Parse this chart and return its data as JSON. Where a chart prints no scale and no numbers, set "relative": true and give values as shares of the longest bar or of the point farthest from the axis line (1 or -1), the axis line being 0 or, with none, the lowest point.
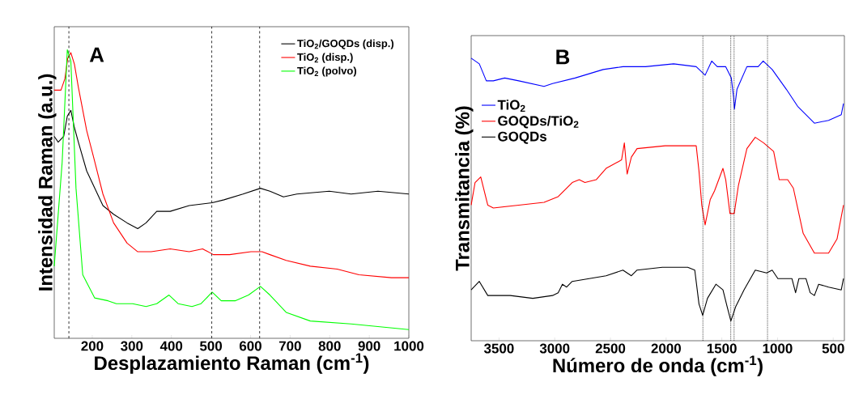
{
  "chart_data": [
    {
      "type": "line",
      "xlabel": "Desplazamiento Raman (cm$^{-1}$)",
      "ylabel": "Intensidad Raman (a.u.)",
      "relative": true,
      "xlim": [
        104,
        1000
      ],
      "xticks": [
        200,
        300,
        400,
        500,
        600,
        700,
        800,
        900,
        1000
      ],
      "legend": "top right",
      "marker": "none",
      "line_style": "solid",
      "grid": false,
      "tick_labels": "x",
      "annotations": [
        "A"
      ],
      "ref_lines": [
        {
          "axis": "x",
          "value": 141,
          "color": "#000000",
          "line_style": "dashed"
        },
        {
          "axis": "x",
          "value": 502,
          "color": "#000000",
          "line_style": "dashed"
        },
        {
          "axis": "x",
          "value": 623,
          "color": "#000000",
          "line_style": "dashed"
        }
      ],
      "series": [
        {
          "name": "TiO$_{2}$/GOQDs (disp.)",
          "color": "#000000",
          "x": [
            104,
            114,
            128,
            137,
            146,
            155,
            165,
            186,
            203,
            227,
            254,
            288,
            315,
            336,
            363,
            397,
            445,
            503,
            533,
            581,
            625,
            649,
            683,
            717,
            799,
            854,
            922,
            1000
          ],
          "values": [
            0.7,
            0.68,
            0.7,
            0.77,
            0.79,
            0.73,
            0.68,
            0.58,
            0.53,
            0.46,
            0.43,
            0.4,
            0.38,
            0.4,
            0.44,
            0.44,
            0.46,
            0.47,
            0.48,
            0.5,
            0.52,
            0.51,
            0.49,
            0.5,
            0.51,
            0.5,
            0.51,
            0.5
          ]
        },
        {
          "name": "TiO$_{2}$ (disp.)",
          "color": "#ff0000",
          "x": [
            104,
            121,
            131,
            138,
            146,
            155,
            165,
            186,
            203,
            227,
            254,
            288,
            315,
            349,
            397,
            445,
            479,
            506,
            547,
            601,
            629,
            649,
            690,
            751,
            819,
            874,
            956,
            1000
          ],
          "values": [
            0.86,
            0.86,
            0.9,
            0.97,
            0.99,
            0.95,
            0.87,
            0.72,
            0.63,
            0.5,
            0.4,
            0.33,
            0.3,
            0.3,
            0.31,
            0.3,
            0.31,
            0.29,
            0.29,
            0.3,
            0.3,
            0.29,
            0.27,
            0.25,
            0.24,
            0.22,
            0.21,
            0.21
          ]
        },
        {
          "name": "TiO$_{2}$ (polvo)",
          "color": "#00ff00",
          "x": [
            104,
            124,
            137,
            146,
            159,
            176,
            206,
            240,
            261,
            302,
            336,
            363,
            394,
            417,
            452,
            475,
            503,
            526,
            561,
            595,
            625,
            649,
            690,
            751,
            854,
            1000
          ],
          "values": [
            0.25,
            0.61,
            1.0,
            0.96,
            0.52,
            0.22,
            0.14,
            0.13,
            0.12,
            0.12,
            0.11,
            0.12,
            0.15,
            0.12,
            0.11,
            0.12,
            0.16,
            0.13,
            0.13,
            0.15,
            0.18,
            0.15,
            0.09,
            0.06,
            0.05,
            0.03
          ]
        }
      ]
    },
    {
      "type": "line",
      "xlabel": "Número de onda (cm$^{-1}$)",
      "ylabel": "Transmitancia (%)",
      "relative": true,
      "xlim": [
        3750,
        400
      ],
      "xticks": [
        3500,
        3000,
        2500,
        2000,
        1500,
        1000,
        500
      ],
      "legend": "left",
      "marker": "none",
      "line_style": "solid",
      "grid": false,
      "tick_labels": "x",
      "annotations": [
        "B"
      ],
      "ref_lines": [
        {
          "axis": "x",
          "value": 1670,
          "color": "#000000",
          "line_style": "dotted"
        },
        {
          "axis": "x",
          "value": 1420,
          "color": "#000000",
          "line_style": "dotted"
        },
        {
          "axis": "x",
          "value": 1390,
          "color": "#000000",
          "line_style": "dotted"
        },
        {
          "axis": "x",
          "value": 1090,
          "color": "#000000",
          "line_style": "dotted"
        }
      ],
      "series": [
        {
          "name": "TiO$_{2}$",
          "color": "#0000ff",
          "x": [
            3750,
            3677,
            3614,
            3551,
            3449,
            3323,
            3096,
            3020,
            2817,
            2565,
            2388,
            2185,
            1933,
            1730,
            1650,
            1591,
            1541,
            1465,
            1415,
            1394,
            1387,
            1364,
            1275,
            1174,
            1129,
            1048,
            921,
            820,
            669,
            542,
            428,
            408
          ],
          "values": [
            1.0,
            0.98,
            0.92,
            0.92,
            0.93,
            0.92,
            0.9,
            0.91,
            0.93,
            0.96,
            0.97,
            0.97,
            0.98,
            0.97,
            0.94,
            0.99,
            0.97,
            0.97,
            0.93,
            0.86,
            0.82,
            0.89,
            0.97,
            0.97,
            0.99,
            0.96,
            0.89,
            0.83,
            0.77,
            0.78,
            0.8,
            0.84
          ]
        },
        {
          "name": "GOQDs/TiO$_{2}$",
          "color": "#ff0000",
          "x": [
            3750,
            3715,
            3664,
            3601,
            3551,
            3323,
            3096,
            2969,
            2843,
            2780,
            2729,
            2628,
            2539,
            2400,
            2375,
            2350,
            2312,
            2261,
            2009,
            1857,
            1781,
            1730,
            1705,
            1680,
            1650,
            1604,
            1566,
            1490,
            1465,
            1427,
            1389,
            1351,
            1275,
            1200,
            1124,
            1035,
            985,
            909,
            858,
            770,
            669,
            542,
            466,
            408
          ],
          "values": [
            0.48,
            0.56,
            0.58,
            0.48,
            0.47,
            0.48,
            0.49,
            0.51,
            0.56,
            0.57,
            0.56,
            0.57,
            0.61,
            0.64,
            0.7,
            0.59,
            0.65,
            0.68,
            0.69,
            0.69,
            0.69,
            0.69,
            0.6,
            0.48,
            0.41,
            0.5,
            0.53,
            0.61,
            0.57,
            0.45,
            0.45,
            0.55,
            0.68,
            0.72,
            0.7,
            0.67,
            0.57,
            0.57,
            0.54,
            0.38,
            0.31,
            0.31,
            0.36,
            0.48
          ]
        },
        {
          "name": "GOQDs",
          "color": "#000000",
          "x": [
            3750,
            3677,
            3601,
            3500,
            3399,
            3197,
            3020,
            2969,
            2931,
            2893,
            2843,
            2691,
            2539,
            2388,
            2312,
            2261,
            2034,
            1806,
            1743,
            1705,
            1672,
            1629,
            1553,
            1490,
            1452,
            1419,
            1376,
            1301,
            1200,
            1098,
            1048,
            997,
            871,
            838,
            808,
            745,
            707,
            669,
            631,
            542,
            428,
            408
          ],
          "values": [
            0.18,
            0.21,
            0.16,
            0.16,
            0.16,
            0.15,
            0.16,
            0.17,
            0.2,
            0.19,
            0.21,
            0.22,
            0.23,
            0.25,
            0.23,
            0.25,
            0.26,
            0.26,
            0.25,
            0.13,
            0.09,
            0.15,
            0.2,
            0.18,
            0.12,
            0.07,
            0.12,
            0.18,
            0.25,
            0.24,
            0.25,
            0.22,
            0.22,
            0.17,
            0.22,
            0.22,
            0.17,
            0.16,
            0.2,
            0.19,
            0.18,
            0.22
          ]
        }
      ]
    }
  ]
}
